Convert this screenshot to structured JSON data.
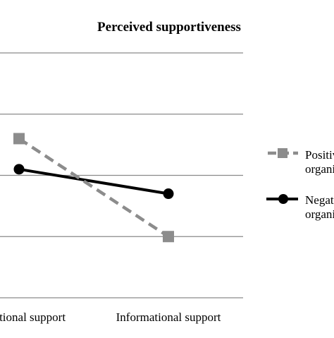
{
  "chart_data": {
    "type": "line",
    "title": "Perceived supportiveness",
    "categories": [
      "Emotional support",
      "Informational support"
    ],
    "series": [
      {
        "name": "Positive organization",
        "values": [
          5.3,
          4.5
        ],
        "color": "#8c8c8c",
        "line_style": "dashed",
        "marker": "square"
      },
      {
        "name": "Negative organization",
        "values": [
          5.05,
          4.85
        ],
        "color": "#000000",
        "line_style": "solid",
        "marker": "circle"
      }
    ],
    "ylim": [
      4.0,
      6.0
    ],
    "yticks": [
      4.0,
      4.5,
      5.0,
      5.5,
      6.0
    ],
    "grid": true,
    "legend": "right",
    "xlabel": "",
    "ylabel": ""
  }
}
